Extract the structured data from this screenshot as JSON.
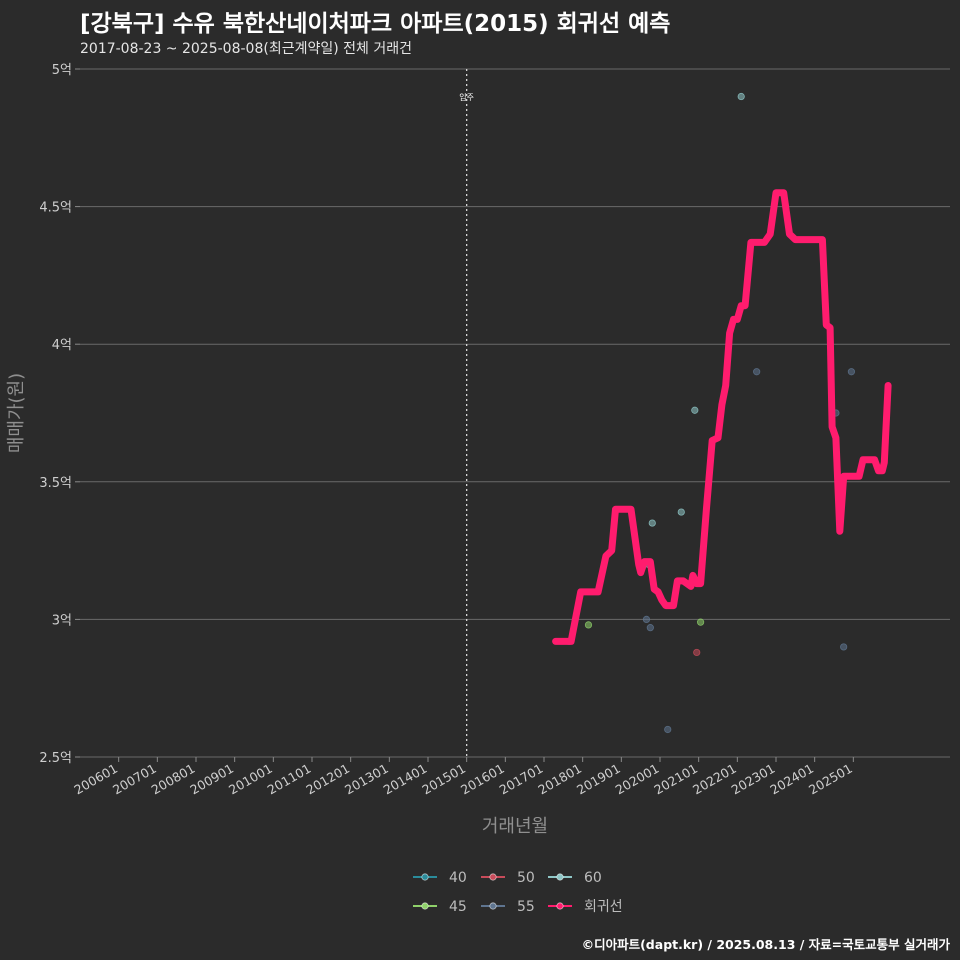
{
  "chart_data": {
    "type": "scatter",
    "title": "[강북구] 수유 북한산네이처파크 아파트(2015) 회귀선 예측",
    "subtitle": "2017-08-23 ~ 2025-08-08(최근계약일) 전체 거래건",
    "xlabel": "거래년월",
    "ylabel": "매매가(원)",
    "caption": "©디아파트(dapt.kr) / 2025.08.13 / 자료=국토교통부 실거래가",
    "x_range": [
      2005.0,
      2027.5
    ],
    "ylim": [
      2.5,
      5.0
    ],
    "y_ticks": [
      {
        "value": 2.5,
        "label": "2.5억"
      },
      {
        "value": 3.0,
        "label": "3억"
      },
      {
        "value": 3.5,
        "label": "3.5억"
      },
      {
        "value": 4.0,
        "label": "4억"
      },
      {
        "value": 4.5,
        "label": "4.5억"
      },
      {
        "value": 5.0,
        "label": "5억"
      }
    ],
    "x_ticks": [
      {
        "value": 2006.0,
        "label": "200601"
      },
      {
        "value": 2007.0,
        "label": "200701"
      },
      {
        "value": 2008.0,
        "label": "200801"
      },
      {
        "value": 2009.0,
        "label": "200901"
      },
      {
        "value": 2010.0,
        "label": "201001"
      },
      {
        "value": 2011.0,
        "label": "201101"
      },
      {
        "value": 2012.0,
        "label": "201201"
      },
      {
        "value": 2013.0,
        "label": "201301"
      },
      {
        "value": 2014.0,
        "label": "201401"
      },
      {
        "value": 2015.0,
        "label": "201501"
      },
      {
        "value": 2016.0,
        "label": "201601"
      },
      {
        "value": 2017.0,
        "label": "201701"
      },
      {
        "value": 2018.0,
        "label": "201801"
      },
      {
        "value": 2019.0,
        "label": "201901"
      },
      {
        "value": 2020.0,
        "label": "202001"
      },
      {
        "value": 2021.0,
        "label": "202101"
      },
      {
        "value": 2022.0,
        "label": "202201"
      },
      {
        "value": 2023.0,
        "label": "202301"
      },
      {
        "value": 2024.0,
        "label": "202401"
      },
      {
        "value": 2025.0,
        "label": "202501"
      }
    ],
    "annotation": {
      "x": 2015.0,
      "label": "입주"
    },
    "series": [
      {
        "name": "40",
        "color": "#2a8c9b",
        "points": []
      },
      {
        "name": "45",
        "color": "#8fd16a",
        "points": [
          [
            2018.15,
            2.98
          ],
          [
            2021.05,
            2.99
          ]
        ]
      },
      {
        "name": "50",
        "color": "#c84b5a",
        "points": [
          [
            2020.95,
            2.88
          ]
        ]
      },
      {
        "name": "55",
        "color": "#5f7590",
        "points": [
          [
            2017.65,
            2.92
          ],
          [
            2019.65,
            3.0
          ],
          [
            2019.75,
            2.97
          ],
          [
            2020.2,
            2.6
          ],
          [
            2022.5,
            3.9
          ],
          [
            2024.55,
            3.75
          ],
          [
            2024.75,
            2.9
          ],
          [
            2024.95,
            3.9
          ]
        ]
      },
      {
        "name": "60",
        "color": "#8fc7c7",
        "points": [
          [
            2019.7,
            3.2
          ],
          [
            2019.8,
            3.35
          ],
          [
            2020.55,
            3.39
          ],
          [
            2020.9,
            3.76
          ],
          [
            2022.1,
            4.9
          ]
        ]
      }
    ],
    "regression": {
      "name": "회귀선",
      "color": "#ff1c6e",
      "points": [
        [
          2017.3,
          2.92
        ],
        [
          2017.5,
          2.92
        ],
        [
          2017.6,
          2.92
        ],
        [
          2017.7,
          2.92
        ],
        [
          2017.95,
          3.1
        ],
        [
          2018.1,
          3.1
        ],
        [
          2018.3,
          3.1
        ],
        [
          2018.4,
          3.1
        ],
        [
          2018.6,
          3.23
        ],
        [
          2018.75,
          3.25
        ],
        [
          2018.85,
          3.4
        ],
        [
          2019.05,
          3.4
        ],
        [
          2019.25,
          3.4
        ],
        [
          2019.45,
          3.2
        ],
        [
          2019.5,
          3.17
        ],
        [
          2019.6,
          3.21
        ],
        [
          2019.75,
          3.21
        ],
        [
          2019.85,
          3.11
        ],
        [
          2019.95,
          3.1
        ],
        [
          2020.05,
          3.07
        ],
        [
          2020.15,
          3.05
        ],
        [
          2020.35,
          3.05
        ],
        [
          2020.45,
          3.14
        ],
        [
          2020.6,
          3.14
        ],
        [
          2020.8,
          3.12
        ],
        [
          2020.85,
          3.16
        ],
        [
          2020.95,
          3.13
        ],
        [
          2021.05,
          3.13
        ],
        [
          2021.2,
          3.4
        ],
        [
          2021.35,
          3.65
        ],
        [
          2021.5,
          3.66
        ],
        [
          2021.6,
          3.78
        ],
        [
          2021.7,
          3.85
        ],
        [
          2021.8,
          4.04
        ],
        [
          2021.9,
          4.09
        ],
        [
          2022.0,
          4.09
        ],
        [
          2022.1,
          4.14
        ],
        [
          2022.2,
          4.14
        ],
        [
          2022.35,
          4.37
        ],
        [
          2022.5,
          4.37
        ],
        [
          2022.7,
          4.37
        ],
        [
          2022.85,
          4.4
        ],
        [
          2023.0,
          4.55
        ],
        [
          2023.2,
          4.55
        ],
        [
          2023.35,
          4.4
        ],
        [
          2023.5,
          4.38
        ],
        [
          2023.7,
          4.38
        ],
        [
          2023.9,
          4.38
        ],
        [
          2024.05,
          4.38
        ],
        [
          2024.2,
          4.38
        ],
        [
          2024.3,
          4.07
        ],
        [
          2024.4,
          4.06
        ],
        [
          2024.45,
          3.7
        ],
        [
          2024.55,
          3.66
        ],
        [
          2024.65,
          3.32
        ],
        [
          2024.75,
          3.52
        ],
        [
          2024.85,
          3.52
        ],
        [
          2025.0,
          3.52
        ],
        [
          2025.15,
          3.52
        ],
        [
          2025.25,
          3.58
        ],
        [
          2025.4,
          3.58
        ],
        [
          2025.55,
          3.58
        ],
        [
          2025.65,
          3.54
        ],
        [
          2025.75,
          3.54
        ],
        [
          2025.8,
          3.57
        ],
        [
          2025.9,
          3.85
        ]
      ]
    },
    "legend": {
      "position": "bottom",
      "items": [
        {
          "label": "40",
          "color": "#2a8c9b"
        },
        {
          "label": "50",
          "color": "#c84b5a"
        },
        {
          "label": "60",
          "color": "#8fc7c7"
        },
        {
          "label": "45",
          "color": "#8fd16a"
        },
        {
          "label": "55",
          "color": "#5f7590"
        },
        {
          "label": "회귀선",
          "color": "#ff1c6e"
        }
      ]
    }
  }
}
